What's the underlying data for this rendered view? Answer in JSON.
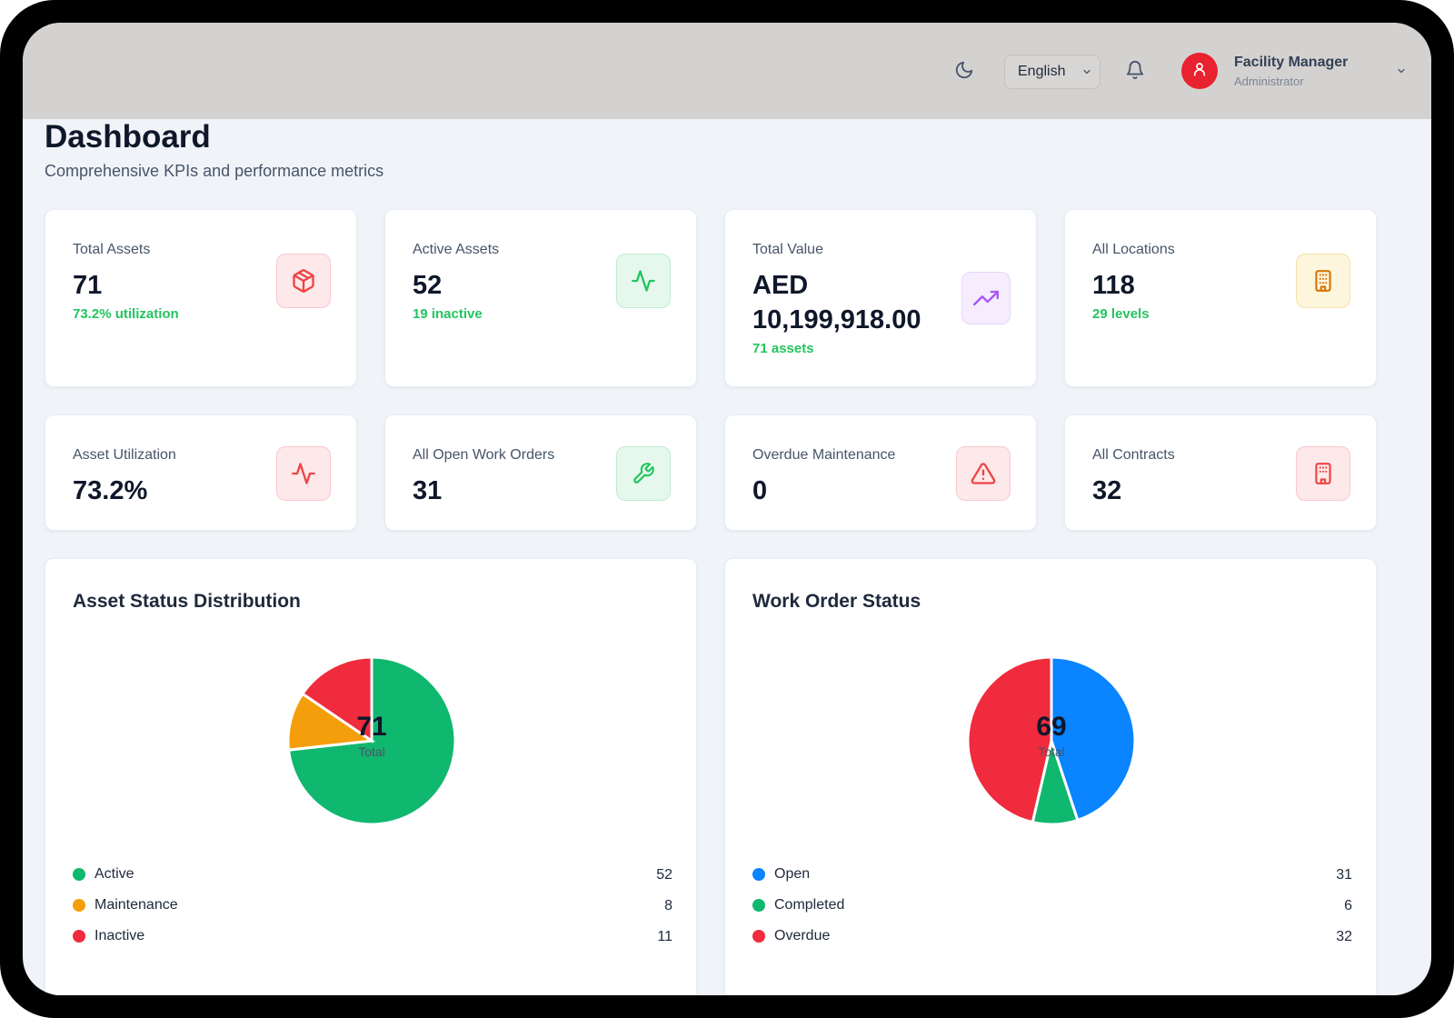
{
  "header": {
    "language": "English",
    "user_name": "Facility Manager",
    "user_role": "Administrator"
  },
  "page": {
    "title": "Dashboard",
    "subtitle": "Comprehensive KPIs and performance metrics"
  },
  "kpis": [
    {
      "label": "Total Assets",
      "value": "71",
      "sub": "73.2% utilization",
      "icon": "cube-icon",
      "color": "#ef4444",
      "bg": "#fde8ea"
    },
    {
      "label": "Active Assets",
      "value": "52",
      "sub": "19 inactive",
      "icon": "activity-icon",
      "color": "#22c55e",
      "bg": "#e6f8ee"
    },
    {
      "label": "Total Value",
      "value": "AED 10,199,918.00",
      "sub": "71 assets",
      "icon": "trending-up-icon",
      "color": "#a855f7",
      "bg": "#f3e9fe"
    },
    {
      "label": "All Locations",
      "value": "118",
      "sub": "29 levels",
      "icon": "building-icon",
      "color": "#d97706",
      "bg": "#fdf5dc"
    },
    {
      "label": "Asset Utilization",
      "value": "73.2%",
      "icon": "activity-icon",
      "color": "#ef4444",
      "bg": "#fde8ea"
    },
    {
      "label": "All Open Work Orders",
      "value": "31",
      "icon": "wrench-icon",
      "color": "#22c55e",
      "bg": "#e6f8ee"
    },
    {
      "label": "Overdue Maintenance",
      "value": "0",
      "icon": "warning-icon",
      "color": "#ef4444",
      "bg": "#fde8ea"
    },
    {
      "label": "All Contracts",
      "value": "32",
      "icon": "contract-icon",
      "color": "#ef4444",
      "bg": "#fde8ea"
    }
  ],
  "charts": {
    "asset_status": {
      "title": "Asset Status Distribution",
      "center_value": "71",
      "center_label": "Total",
      "legend": [
        {
          "label": "Active",
          "value": "52",
          "color": "#10b76f"
        },
        {
          "label": "Maintenance",
          "value": "8",
          "color": "#f59e0b"
        },
        {
          "label": "Inactive",
          "value": "11",
          "color": "#ef2b3d"
        }
      ]
    },
    "work_order": {
      "title": "Work Order Status",
      "center_value": "69",
      "center_label": "Total",
      "legend": [
        {
          "label": "Open",
          "value": "31",
          "color": "#0a84ff"
        },
        {
          "label": "Completed",
          "value": "6",
          "color": "#10b76f"
        },
        {
          "label": "Overdue",
          "value": "32",
          "color": "#ef2b3d"
        }
      ]
    }
  },
  "chart_data": [
    {
      "type": "pie",
      "title": "Asset Status Distribution",
      "categories": [
        "Active",
        "Maintenance",
        "Inactive"
      ],
      "values": [
        52,
        8,
        11
      ],
      "colors": [
        "#10b76f",
        "#f59e0b",
        "#ef2b3d"
      ]
    },
    {
      "type": "pie",
      "title": "Work Order Status",
      "categories": [
        "Open",
        "Completed",
        "Overdue"
      ],
      "values": [
        31,
        6,
        32
      ],
      "colors": [
        "#0a84ff",
        "#10b76f",
        "#ef2b3d"
      ]
    }
  ]
}
